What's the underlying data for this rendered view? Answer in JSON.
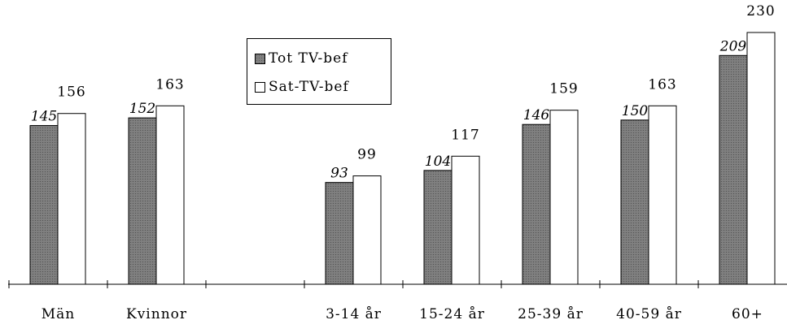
{
  "chart_data": {
    "type": "bar",
    "categories": [
      "Män",
      "Kvinnor",
      "",
      "3-14 år",
      "15-24 år",
      "25-39 år",
      "40-59 år",
      "60+"
    ],
    "series": [
      {
        "name": "Tot TV-bef",
        "values": [
          145,
          152,
          null,
          93,
          104,
          146,
          150,
          209
        ]
      },
      {
        "name": "Sat-TV-bef",
        "values": [
          156,
          163,
          null,
          99,
          117,
          159,
          163,
          230
        ]
      }
    ],
    "title": "",
    "xlabel": "",
    "ylabel": "",
    "ylim": [
      0,
      230
    ],
    "grid": false,
    "legend_position": "top-center",
    "colors": {
      "tot": "#808080",
      "sat": "#ffffff",
      "outline": "#000000"
    }
  }
}
